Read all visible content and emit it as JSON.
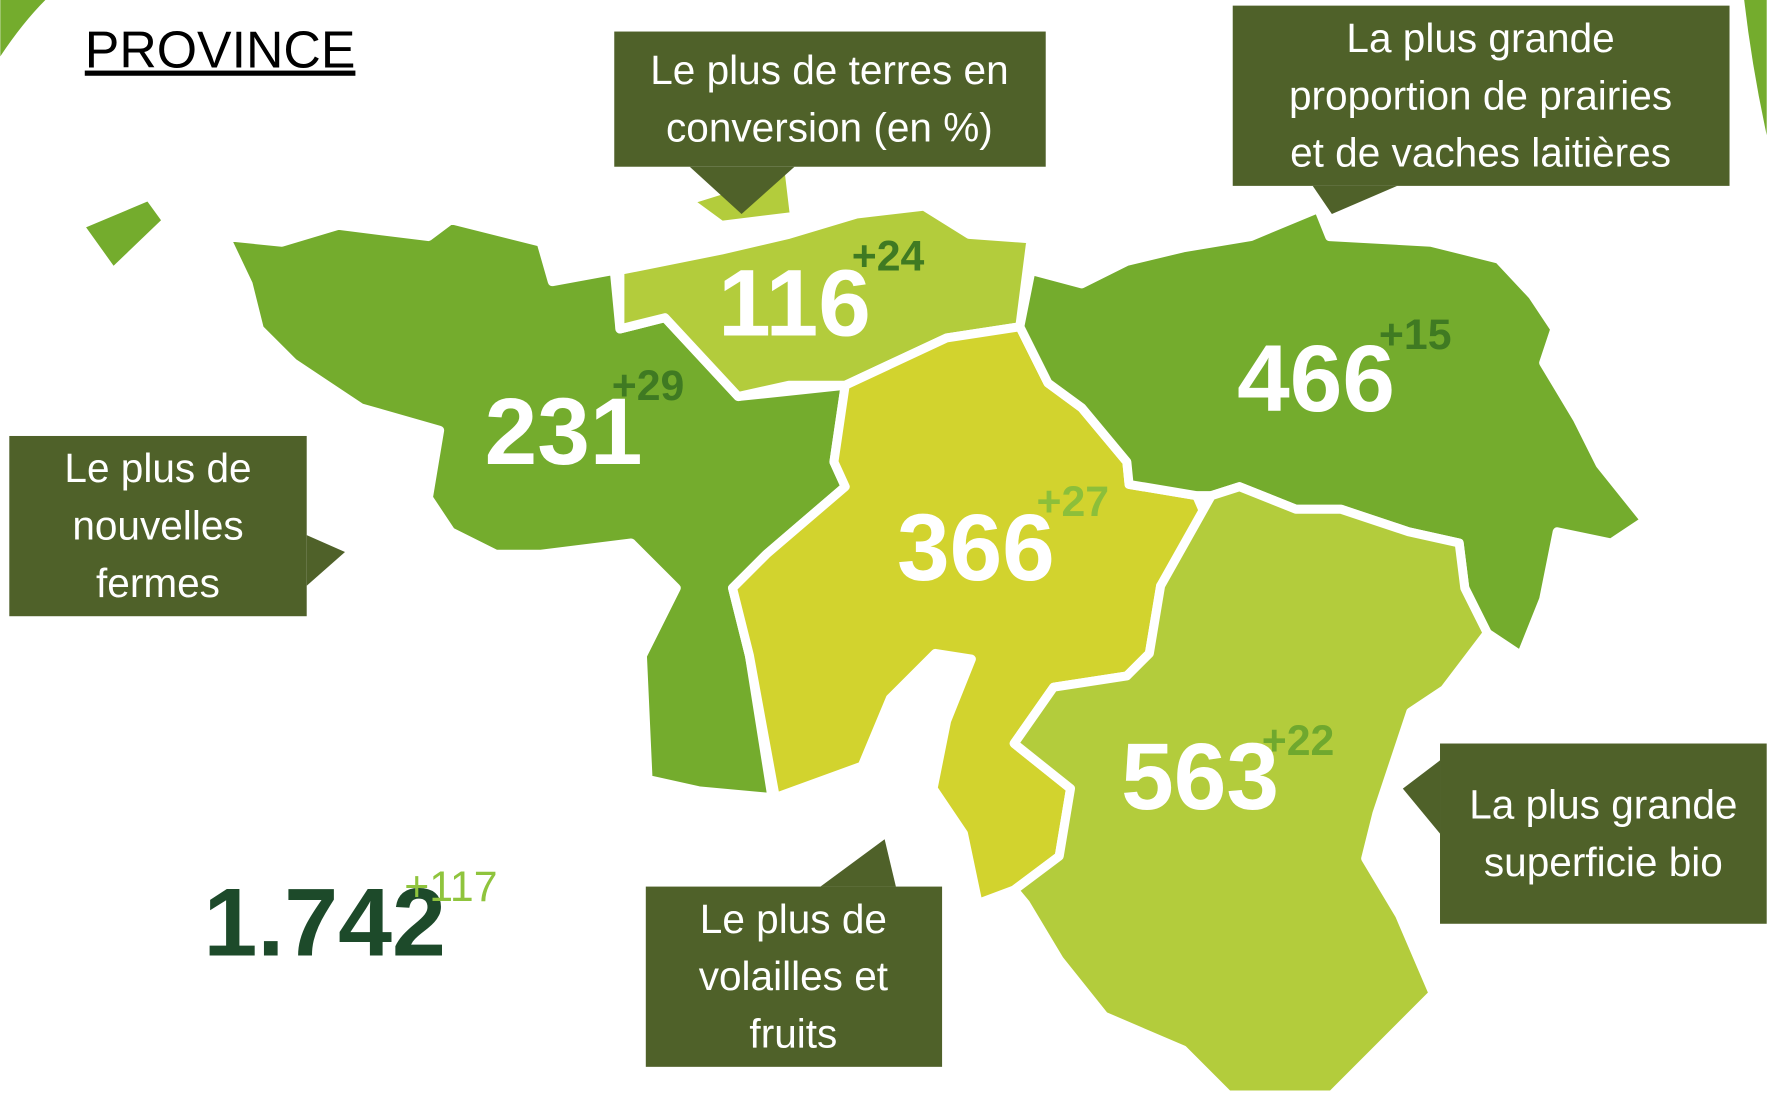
{
  "title": "PROVINCE",
  "provinces": [
    {
      "value": "231",
      "delta": "+29"
    },
    {
      "value": "116",
      "delta": "+24"
    },
    {
      "value": "366",
      "delta": "+27"
    },
    {
      "value": "466",
      "delta": "+15"
    },
    {
      "value": "563",
      "delta": "+22"
    }
  ],
  "total": {
    "value": "1.742",
    "delta": "+117"
  },
  "callouts": [
    {
      "lines": [
        "Le plus de terres en",
        "conversion (en %)"
      ]
    },
    {
      "lines": [
        "La plus grande",
        "proportion de prairies",
        "et de vaches laitières"
      ]
    },
    {
      "lines": [
        "Le plus de",
        "nouvelles",
        "fermes"
      ]
    },
    {
      "lines": [
        "Le plus de",
        "volailles et",
        "fruits"
      ]
    },
    {
      "lines": [
        "La plus grande",
        "superficie bio"
      ]
    }
  ]
}
